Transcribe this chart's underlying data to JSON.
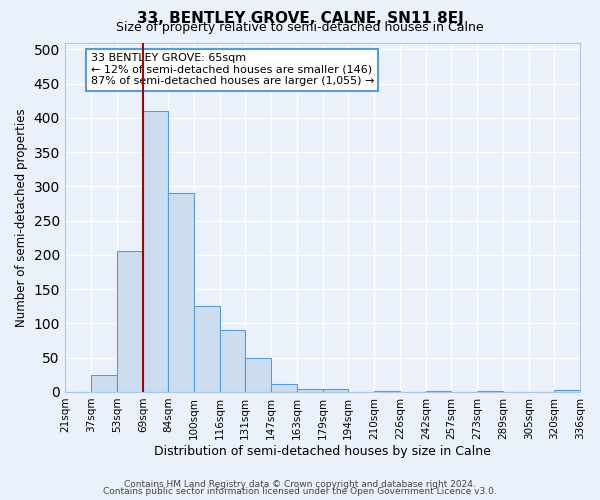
{
  "title": "33, BENTLEY GROVE, CALNE, SN11 8EJ",
  "subtitle": "Size of property relative to semi-detached houses in Calne",
  "xlabel": "Distribution of semi-detached houses by size in Calne",
  "ylabel": "Number of semi-detached properties",
  "bin_labels": [
    "21sqm",
    "37sqm",
    "53sqm",
    "69sqm",
    "84sqm",
    "100sqm",
    "116sqm",
    "131sqm",
    "147sqm",
    "163sqm",
    "179sqm",
    "194sqm",
    "210sqm",
    "226sqm",
    "242sqm",
    "257sqm",
    "273sqm",
    "289sqm",
    "305sqm",
    "320sqm",
    "336sqm"
  ],
  "bar_values": [
    0,
    25,
    205,
    410,
    290,
    125,
    90,
    50,
    12,
    5,
    5,
    0,
    1,
    0,
    1,
    0,
    1,
    0,
    0,
    3
  ],
  "bar_color": "#ccddf0",
  "bar_edge_color": "#5b9bd5",
  "property_line_x": 69,
  "property_line_color": "#aa0000",
  "annotation_title": "33 BENTLEY GROVE: 65sqm",
  "annotation_line1": "← 12% of semi-detached houses are smaller (146)",
  "annotation_line2": "87% of semi-detached houses are larger (1,055) →",
  "annotation_box_facecolor": "white",
  "annotation_box_edgecolor": "#5b9bd5",
  "ylim": [
    0,
    510
  ],
  "yticks": [
    0,
    50,
    100,
    150,
    200,
    250,
    300,
    350,
    400,
    450,
    500
  ],
  "footer1": "Contains HM Land Registry data © Crown copyright and database right 2024.",
  "footer2": "Contains public sector information licensed under the Open Government Licence v3.0.",
  "background_color": "#eaf1fb",
  "plot_background": "#eaf1fb",
  "grid_color": "#ffffff",
  "title_fontsize": 11,
  "subtitle_fontsize": 9
}
